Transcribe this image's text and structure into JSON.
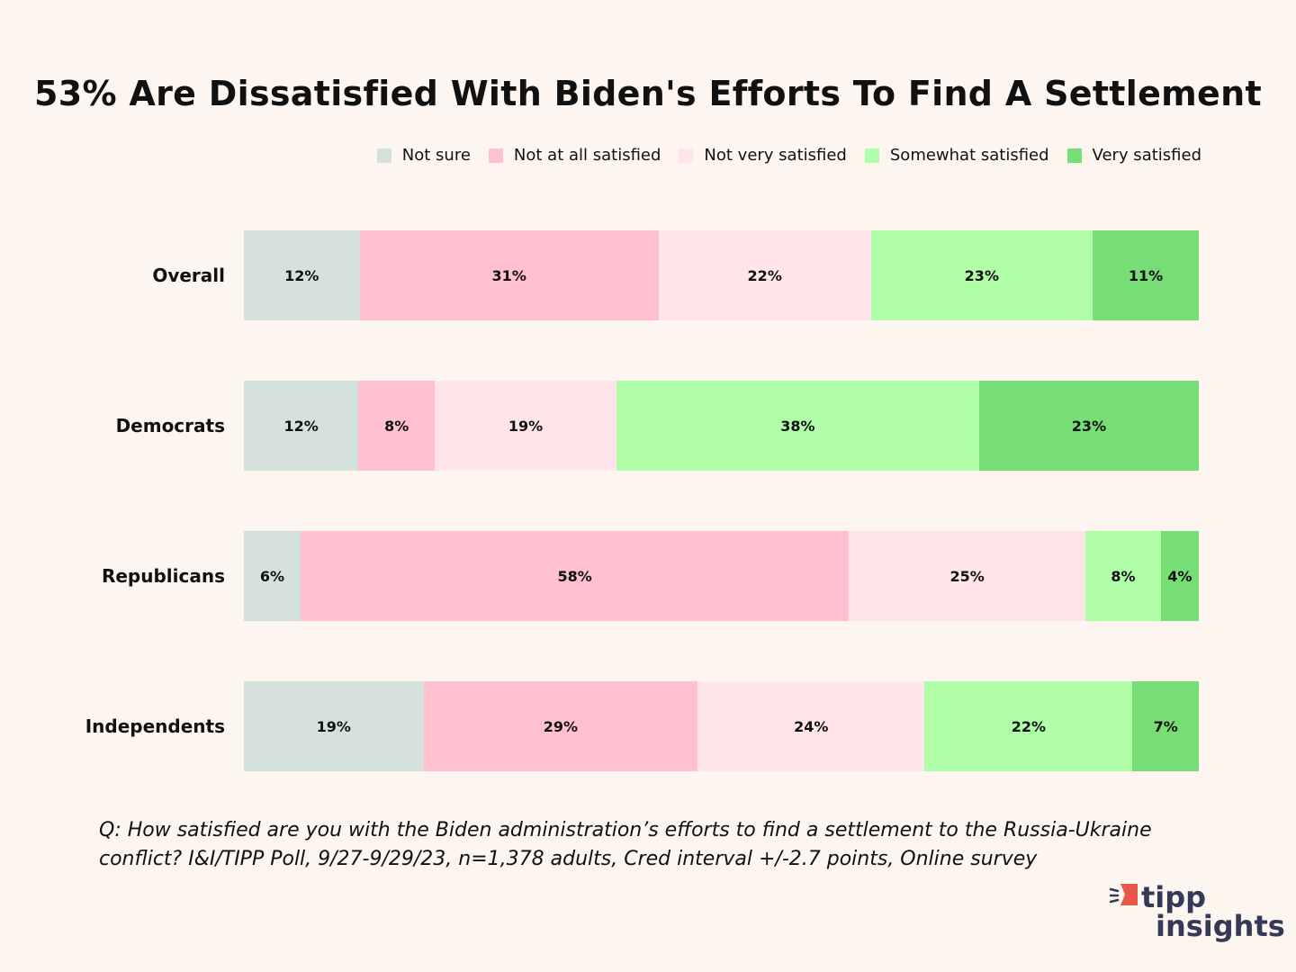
{
  "chart_data": {
    "type": "bar",
    "orientation": "horizontal-stacked-100",
    "title": "53% Are Dissatisfied With Biden's Efforts To Find A Settlement",
    "legend_position": "top-right",
    "categories": [
      "Overall",
      "Democrats",
      "Republicans",
      "Independents"
    ],
    "series": [
      {
        "name": "Not sure",
        "color": "#d5e1dc",
        "values": [
          12,
          12,
          6,
          19
        ]
      },
      {
        "name": "Not at all satisfied",
        "color": "#ffc0cf",
        "values": [
          31,
          8,
          58,
          29
        ]
      },
      {
        "name": "Not very satisfied",
        "color": "#ffe4ea",
        "values": [
          22,
          19,
          25,
          24
        ]
      },
      {
        "name": "Somewhat satisfied",
        "color": "#b0ffa8",
        "values": [
          23,
          38,
          8,
          22
        ]
      },
      {
        "name": "Very satisfied",
        "color": "#77dd77",
        "values": [
          11,
          23,
          4,
          7
        ]
      }
    ],
    "value_suffix": "%",
    "grid": false
  },
  "footnote": "Q:  How satisfied are you with the Biden administration’s efforts to find a settlement to the Russia-Ukraine conflict? I&I/TIPP Poll, 9/27-9/29/23, n=1,378 adults, Cred interval +/-2.7 points, Online survey",
  "logo": {
    "text": "tipp insights",
    "color": "#343a55",
    "accent": "#e8574a"
  }
}
